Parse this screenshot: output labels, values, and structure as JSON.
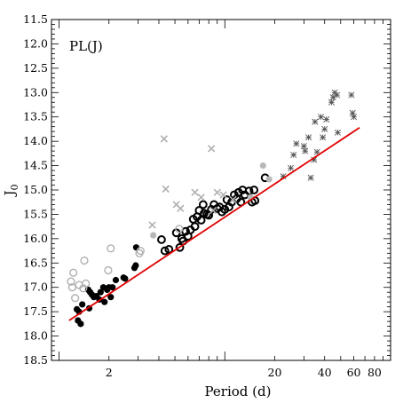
{
  "chart_data": {
    "type": "scatter",
    "panel_label": "PL(J)",
    "xlabel": "Period (d)",
    "ylabel_main": "J",
    "ylabel_sub": "0",
    "x_scale": "log",
    "xlim": [
      0.9,
      100
    ],
    "ylim": [
      18.5,
      11.5
    ],
    "x_ticks_labeled": [
      {
        "value": 2,
        "label": "2"
      },
      {
        "value": 20,
        "label": "20"
      },
      {
        "value": 40,
        "label": "40"
      },
      {
        "value": 60,
        "label": "60"
      },
      {
        "value": 80,
        "label": "80"
      }
    ],
    "y_ticks_labeled": [
      {
        "value": 11.5,
        "label": "11.5"
      },
      {
        "value": 12.0,
        "label": "12.0"
      },
      {
        "value": 12.5,
        "label": "12.5"
      },
      {
        "value": 13.0,
        "label": "13.0"
      },
      {
        "value": 13.5,
        "label": "13.5"
      },
      {
        "value": 14.0,
        "label": "14.0"
      },
      {
        "value": 14.5,
        "label": "14.5"
      },
      {
        "value": 15.0,
        "label": "15.0"
      },
      {
        "value": 15.5,
        "label": "15.5"
      },
      {
        "value": 16.0,
        "label": "16.0"
      },
      {
        "value": 16.5,
        "label": "16.5"
      },
      {
        "value": 17.0,
        "label": "17.0"
      },
      {
        "value": 17.5,
        "label": "17.5"
      },
      {
        "value": 18.0,
        "label": "18.0"
      },
      {
        "value": 18.5,
        "label": "18.5"
      }
    ],
    "grid": false,
    "colors": {
      "fit_line": "#e00000",
      "filled": "#000000",
      "open_black": "#000000",
      "open_gray": "#b0b0b0",
      "filled_gray": "#b8b8b8",
      "cross_gray": "#b0b0b0",
      "star": "#555555"
    },
    "fit_line": {
      "x": [
        1.15,
        65
      ],
      "y": [
        17.68,
        13.72
      ]
    },
    "series": [
      {
        "marker": "filled-circle-black",
        "points": [
          [
            1.28,
            17.45
          ],
          [
            1.3,
            17.68
          ],
          [
            1.32,
            17.5
          ],
          [
            1.35,
            17.75
          ],
          [
            1.38,
            17.35
          ],
          [
            1.5,
            17.05
          ],
          [
            1.52,
            17.43
          ],
          [
            1.54,
            17.1
          ],
          [
            1.58,
            17.15
          ],
          [
            1.62,
            17.2
          ],
          [
            1.68,
            17.18
          ],
          [
            1.75,
            17.25
          ],
          [
            1.78,
            17.1
          ],
          [
            1.85,
            17.0
          ],
          [
            1.88,
            17.3
          ],
          [
            1.95,
            17.05
          ],
          [
            2.0,
            17.0
          ],
          [
            2.05,
            17.2
          ],
          [
            2.1,
            17.0
          ],
          [
            2.2,
            16.85
          ],
          [
            2.45,
            16.8
          ],
          [
            2.5,
            16.82
          ],
          [
            2.85,
            16.6
          ],
          [
            2.9,
            16.55
          ],
          [
            2.92,
            16.18
          ]
        ]
      },
      {
        "marker": "open-circle-black",
        "points": [
          [
            4.15,
            16.02
          ],
          [
            4.35,
            16.25
          ],
          [
            4.6,
            16.22
          ],
          [
            5.1,
            15.88
          ],
          [
            5.35,
            16.18
          ],
          [
            5.5,
            16.0
          ],
          [
            5.6,
            16.05
          ],
          [
            5.8,
            15.85
          ],
          [
            6.0,
            15.95
          ],
          [
            6.2,
            15.82
          ],
          [
            6.45,
            15.6
          ],
          [
            6.6,
            15.75
          ],
          [
            6.8,
            15.55
          ],
          [
            7.0,
            15.42
          ],
          [
            7.2,
            15.62
          ],
          [
            7.4,
            15.3
          ],
          [
            7.5,
            15.48
          ],
          [
            7.8,
            15.5
          ],
          [
            8.0,
            15.52
          ],
          [
            8.3,
            15.4
          ],
          [
            8.6,
            15.3
          ],
          [
            9.0,
            15.38
          ],
          [
            9.3,
            15.35
          ],
          [
            9.6,
            15.45
          ],
          [
            10.0,
            15.4
          ],
          [
            10.3,
            15.2
          ],
          [
            10.6,
            15.35
          ],
          [
            11.0,
            15.25
          ],
          [
            11.4,
            15.1
          ],
          [
            11.8,
            15.18
          ],
          [
            12.1,
            15.05
          ],
          [
            12.5,
            15.25
          ],
          [
            12.8,
            15.0
          ],
          [
            13.2,
            15.1
          ],
          [
            14.0,
            15.02
          ],
          [
            14.6,
            15.25
          ],
          [
            15.0,
            15.0
          ],
          [
            15.2,
            15.22
          ],
          [
            17.5,
            14.75
          ]
        ]
      },
      {
        "marker": "open-circle-gray",
        "points": [
          [
            1.18,
            16.88
          ],
          [
            1.2,
            17.0
          ],
          [
            1.22,
            16.7
          ],
          [
            1.25,
            17.22
          ],
          [
            1.32,
            16.95
          ],
          [
            1.4,
            17.02
          ],
          [
            1.42,
            16.45
          ],
          [
            1.45,
            16.92
          ],
          [
            1.98,
            16.65
          ],
          [
            2.05,
            16.2
          ],
          [
            3.05,
            16.3
          ],
          [
            3.1,
            16.25
          ],
          [
            5.3,
            15.8
          ]
        ]
      },
      {
        "marker": "filled-circle-gray",
        "points": [
          [
            3.7,
            15.93
          ],
          [
            17.0,
            14.5
          ],
          [
            18.5,
            14.78
          ],
          [
            14.3,
            15.15
          ]
        ]
      },
      {
        "marker": "cross-gray",
        "points": [
          [
            3.65,
            15.72
          ],
          [
            4.3,
            13.95
          ],
          [
            4.4,
            14.98
          ],
          [
            5.1,
            15.3
          ],
          [
            5.4,
            15.38
          ],
          [
            6.6,
            15.05
          ],
          [
            7.2,
            15.15
          ],
          [
            8.3,
            14.15
          ],
          [
            8.5,
            15.42
          ],
          [
            9.0,
            15.05
          ],
          [
            9.8,
            15.1
          ],
          [
            11.2,
            15.2
          ]
        ]
      },
      {
        "marker": "star",
        "points": [
          [
            22.5,
            14.72
          ],
          [
            25.0,
            14.55
          ],
          [
            26.0,
            14.28
          ],
          [
            27.0,
            14.05
          ],
          [
            30.0,
            14.1
          ],
          [
            30.5,
            14.2
          ],
          [
            32.0,
            13.92
          ],
          [
            33.0,
            14.75
          ],
          [
            34.5,
            14.38
          ],
          [
            35.0,
            13.6
          ],
          [
            36.0,
            14.22
          ],
          [
            38.0,
            13.5
          ],
          [
            39.0,
            13.92
          ],
          [
            40.0,
            13.75
          ],
          [
            41.0,
            13.55
          ],
          [
            44.0,
            13.2
          ],
          [
            45.0,
            13.1
          ],
          [
            46.0,
            13.0
          ],
          [
            47.5,
            13.05
          ],
          [
            48.0,
            13.82
          ],
          [
            58.0,
            13.05
          ],
          [
            59.0,
            13.42
          ],
          [
            60.0,
            13.5
          ]
        ]
      }
    ]
  }
}
